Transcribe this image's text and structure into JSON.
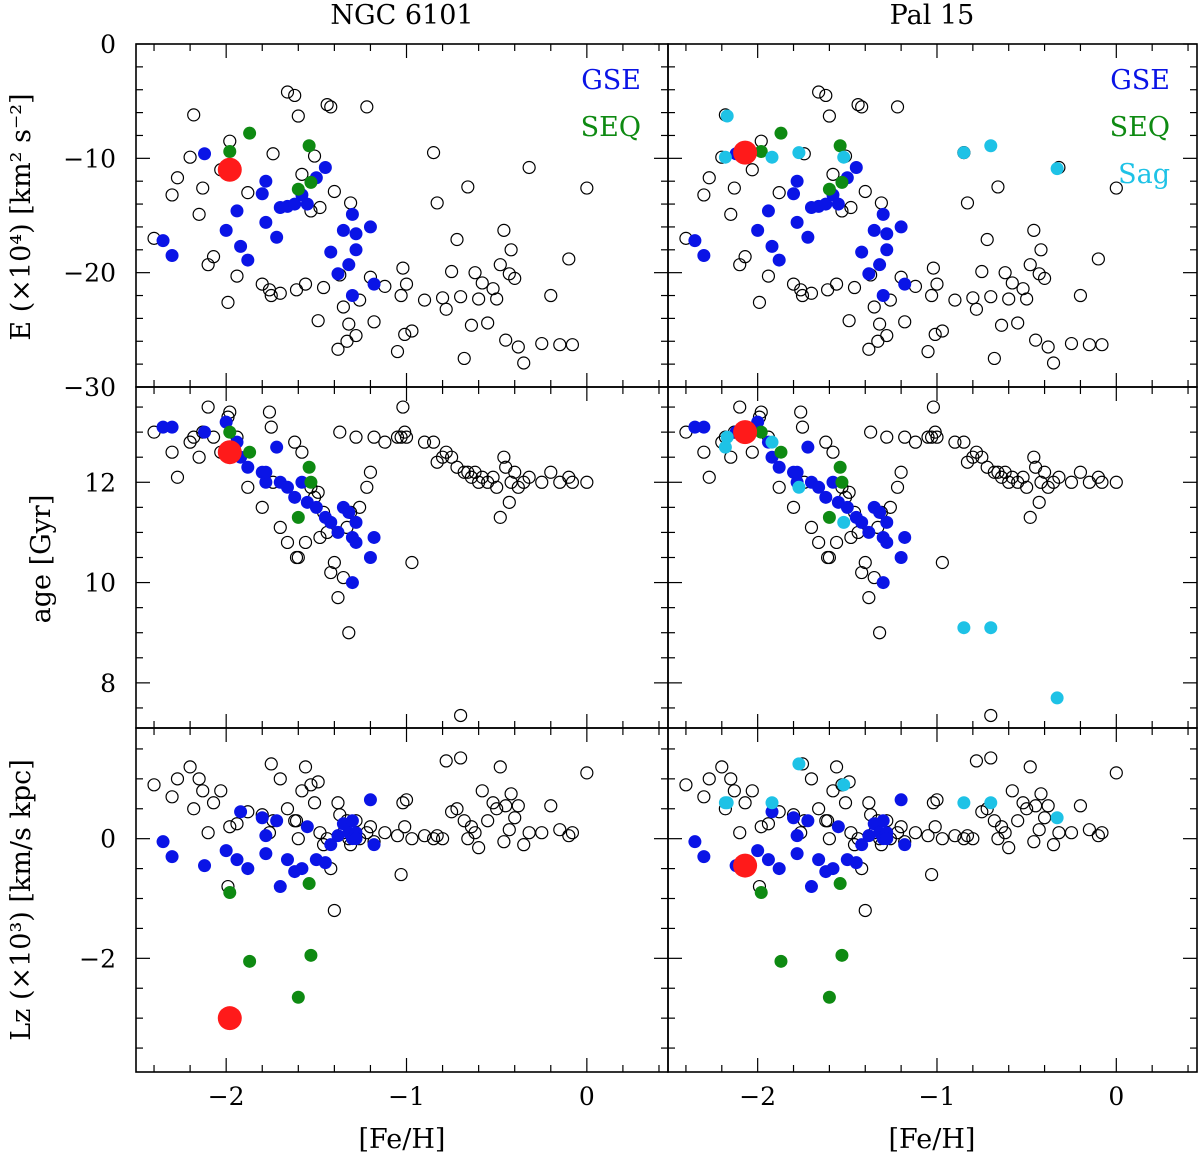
{
  "colors": {
    "open": "#000000",
    "gse": "#0a14e6",
    "seq": "#0e8a12",
    "sag": "#1ec2e6",
    "target": "#ff1a1a"
  },
  "chart_data": {
    "type": "scatter",
    "titles": [
      "NGC 6101",
      "Pal 15"
    ],
    "xlabel": "[Fe/H]",
    "xlim": [
      -2.5,
      0.45
    ],
    "xticks": [
      -2,
      -1,
      0
    ],
    "xtick_labels": [
      "−2",
      "−1",
      "0"
    ],
    "rows": [
      {
        "key": "E",
        "ylabel": "E (×10⁴) [km² s⁻²]",
        "ylim": [
          -30,
          0
        ],
        "yticks": [
          0,
          -10,
          -20,
          -30
        ],
        "ytick_labels": [
          "0",
          "−10",
          "−20",
          "−30"
        ]
      },
      {
        "key": "age",
        "ylabel": "age [Gyr]",
        "ylim": [
          7.1,
          13.9
        ],
        "yticks": [
          8,
          10,
          12
        ],
        "ytick_labels": [
          "8",
          "10",
          "12"
        ]
      },
      {
        "key": "lz",
        "ylabel": "Lz (×10³) [km/s kpc]",
        "ylim": [
          -3.9,
          1.85
        ],
        "yticks": [
          0,
          -2
        ],
        "ytick_labels": [
          "0",
          "−2"
        ]
      }
    ],
    "legends": [
      [
        "GSE",
        "SEQ"
      ],
      [
        "GSE",
        "SEQ",
        "Sag"
      ]
    ],
    "targets": [
      {
        "name": "NGC 6101",
        "feh": -1.98,
        "E": -11.0,
        "age": 12.6,
        "lz": -3.0
      },
      {
        "name": "Pal 15",
        "feh": -2.07,
        "E": -9.5,
        "age": 13.0,
        "lz": -0.45
      }
    ],
    "gse": [
      {
        "feh": -2.35,
        "E": -17.2,
        "age": 13.1,
        "lz": -0.05
      },
      {
        "feh": -2.3,
        "E": -18.5,
        "age": 13.1,
        "lz": -0.3
      },
      {
        "feh": -2.12,
        "E": -9.6,
        "age": 13.0,
        "lz": -0.45
      },
      {
        "feh": -2.0,
        "E": -16.3,
        "age": 13.2,
        "lz": -0.2
      },
      {
        "feh": -1.94,
        "E": -14.6,
        "age": 12.8,
        "lz": -0.35
      },
      {
        "feh": -1.92,
        "E": -17.7,
        "age": 12.5,
        "lz": 0.45
      },
      {
        "feh": -1.88,
        "E": -18.9,
        "age": 12.3,
        "lz": -0.5
      },
      {
        "feh": -1.8,
        "E": -13.1,
        "age": 12.2,
        "lz": 0.35
      },
      {
        "feh": -1.78,
        "E": -12.0,
        "age": 12.0,
        "lz": 0.05
      },
      {
        "feh": -1.78,
        "E": -15.6,
        "age": 12.2,
        "lz": -0.25
      },
      {
        "feh": -1.72,
        "E": -16.9,
        "age": 12.7,
        "lz": 0.3
      },
      {
        "feh": -1.7,
        "E": -14.3,
        "age": 12.0,
        "lz": -0.8
      },
      {
        "feh": -1.66,
        "E": -14.2,
        "age": 11.9,
        "lz": -0.35
      },
      {
        "feh": -1.62,
        "E": -14.0,
        "age": 11.7,
        "lz": -0.55
      },
      {
        "feh": -1.58,
        "E": -13.2,
        "age": 12.0,
        "lz": -0.5
      },
      {
        "feh": -1.55,
        "E": -14.0,
        "age": 11.6,
        "lz": 0.2
      },
      {
        "feh": -1.5,
        "E": -11.7,
        "age": 11.5,
        "lz": -0.35
      },
      {
        "feh": -1.45,
        "E": -10.8,
        "age": 11.3,
        "lz": -0.4
      },
      {
        "feh": -1.42,
        "E": -18.2,
        "age": 11.2,
        "lz": -0.1
      },
      {
        "feh": -1.38,
        "E": -20.1,
        "age": 11.0,
        "lz": 0.05
      },
      {
        "feh": -1.35,
        "E": -16.3,
        "age": 11.5,
        "lz": 0.25
      },
      {
        "feh": -1.32,
        "E": -19.3,
        "age": 11.4,
        "lz": 0.1
      },
      {
        "feh": -1.3,
        "E": -14.9,
        "age": 10.9,
        "lz": 0.0
      },
      {
        "feh": -1.28,
        "E": -16.6,
        "age": 11.2,
        "lz": 0.1
      },
      {
        "feh": -1.3,
        "E": -22.0,
        "age": 10.0,
        "lz": 0.3
      },
      {
        "feh": -1.28,
        "E": -18.0,
        "age": 10.8,
        "lz": 0.0
      },
      {
        "feh": -1.2,
        "E": -16.0,
        "age": 10.5,
        "lz": 0.65
      },
      {
        "feh": -1.18,
        "E": -21.0,
        "age": 10.9,
        "lz": -0.1
      }
    ],
    "seq": [
      {
        "feh": -1.98,
        "E": -9.4,
        "age": 13.0,
        "lz": -0.9
      },
      {
        "feh": -1.87,
        "E": -7.8,
        "age": 12.6,
        "lz": -2.05
      },
      {
        "feh": -1.6,
        "E": -12.7,
        "age": 11.3,
        "lz": -2.65
      },
      {
        "feh": -1.54,
        "E": -8.9,
        "age": 12.3,
        "lz": -0.75
      },
      {
        "feh": -1.53,
        "E": -12.1,
        "age": 12.0,
        "lz": -1.95
      }
    ],
    "sag": [
      {
        "feh": -2.17,
        "E": -6.3,
        "age": 12.9,
        "lz": 0.6
      },
      {
        "feh": -2.18,
        "E": -9.9,
        "age": 12.7,
        "lz": 0.6
      },
      {
        "feh": -1.92,
        "E": -9.9,
        "age": 12.8,
        "lz": 0.6
      },
      {
        "feh": -1.77,
        "E": -9.5,
        "age": 11.9,
        "lz": 1.25
      },
      {
        "feh": -1.52,
        "E": -9.9,
        "age": 11.2,
        "lz": 0.9
      },
      {
        "feh": -0.85,
        "E": -9.5,
        "age": 9.1,
        "lz": 0.6
      },
      {
        "feh": -0.7,
        "E": -8.9,
        "age": 9.1,
        "lz": 0.6
      },
      {
        "feh": -0.33,
        "E": -10.9,
        "age": 7.7,
        "lz": 0.35
      }
    ],
    "open": [
      {
        "feh": -2.4,
        "E": -17.0,
        "age": 13.0,
        "lz": 0.9
      },
      {
        "feh": -2.3,
        "E": -13.2,
        "age": 12.6,
        "lz": 0.7
      },
      {
        "feh": -2.27,
        "E": -11.7,
        "age": 12.1,
        "lz": 1.0
      },
      {
        "feh": -2.2,
        "E": -9.9,
        "age": 12.8,
        "lz": 1.2
      },
      {
        "feh": -2.18,
        "E": -6.2,
        "age": 12.9,
        "lz": 0.5
      },
      {
        "feh": -2.15,
        "E": -14.9,
        "age": 12.5,
        "lz": 1.0
      },
      {
        "feh": -2.13,
        "E": -12.6,
        "age": 13.0,
        "lz": 0.8
      },
      {
        "feh": -2.1,
        "E": -19.3,
        "age": 13.5,
        "lz": 0.1
      },
      {
        "feh": -2.07,
        "E": -18.6,
        "age": 12.9,
        "lz": 0.6
      },
      {
        "feh": -2.03,
        "E": -11.0,
        "age": 12.6,
        "lz": 0.8
      },
      {
        "feh": -1.99,
        "E": -22.6,
        "age": 13.3,
        "lz": -0.8
      },
      {
        "feh": -1.98,
        "E": -8.5,
        "age": 13.4,
        "lz": 0.2
      },
      {
        "feh": -1.94,
        "E": -20.3,
        "age": 12.9,
        "lz": 0.25
      },
      {
        "feh": -1.88,
        "E": -13.0,
        "age": 11.9,
        "lz": 0.45
      },
      {
        "feh": -1.8,
        "E": -21.0,
        "age": 11.5,
        "lz": 0.4
      },
      {
        "feh": -1.76,
        "E": -21.5,
        "age": 13.4,
        "lz": 0.1
      },
      {
        "feh": -1.75,
        "E": -22.0,
        "age": 13.1,
        "lz": 1.25
      },
      {
        "feh": -1.74,
        "E": -9.6,
        "age": 12.0,
        "lz": 0.3
      },
      {
        "feh": -1.7,
        "E": -21.8,
        "age": 11.1,
        "lz": 1.0
      },
      {
        "feh": -1.66,
        "E": -4.2,
        "age": 10.8,
        "lz": 0.5
      },
      {
        "feh": -1.62,
        "E": -4.5,
        "age": 12.8,
        "lz": 0.3
      },
      {
        "feh": -1.61,
        "E": -21.5,
        "age": 10.5,
        "lz": 0.3
      },
      {
        "feh": -1.6,
        "E": -6.3,
        "age": 10.5,
        "lz": 0.0
      },
      {
        "feh": -1.58,
        "E": -11.4,
        "age": 12.6,
        "lz": 0.8
      },
      {
        "feh": -1.56,
        "E": -21.0,
        "age": 10.8,
        "lz": 1.2
      },
      {
        "feh": -1.53,
        "E": -14.6,
        "age": 11.9,
        "lz": 0.9
      },
      {
        "feh": -1.51,
        "E": -9.8,
        "age": 11.7,
        "lz": 0.6
      },
      {
        "feh": -1.49,
        "E": -24.2,
        "age": 11.8,
        "lz": 0.95
      },
      {
        "feh": -1.48,
        "E": -14.3,
        "age": 10.9,
        "lz": 0.1
      },
      {
        "feh": -1.46,
        "E": -21.3,
        "age": 11.4,
        "lz": -0.1
      },
      {
        "feh": -1.44,
        "E": -5.3,
        "age": 11.0,
        "lz": 0.0
      },
      {
        "feh": -1.42,
        "E": -5.5,
        "age": 10.2,
        "lz": -0.5
      },
      {
        "feh": -1.4,
        "E": -12.9,
        "age": 10.4,
        "lz": -1.2
      },
      {
        "feh": -1.38,
        "E": -26.7,
        "age": 9.7,
        "lz": 0.6
      },
      {
        "feh": -1.37,
        "E": -20.2,
        "age": 13.0,
        "lz": 0.4
      },
      {
        "feh": -1.35,
        "E": -23.0,
        "age": 10.1,
        "lz": 0.1
      },
      {
        "feh": -1.33,
        "E": -26.0,
        "age": 11.1,
        "lz": 0.3
      },
      {
        "feh": -1.32,
        "E": -24.5,
        "age": 9.0,
        "lz": 0.0
      },
      {
        "feh": -1.31,
        "E": -13.9,
        "age": 11.4,
        "lz": -0.1
      },
      {
        "feh": -1.28,
        "E": -25.5,
        "age": 12.9,
        "lz": 0.3
      },
      {
        "feh": -1.26,
        "E": -22.4,
        "age": 11.5,
        "lz": 0.0
      },
      {
        "feh": -1.22,
        "E": -5.5,
        "age": 11.9,
        "lz": 0.1
      },
      {
        "feh": -1.2,
        "E": -20.4,
        "age": 12.2,
        "lz": 0.2
      },
      {
        "feh": -1.18,
        "E": -24.3,
        "age": 12.9,
        "lz": -0.05
      },
      {
        "feh": -1.12,
        "E": -21.2,
        "age": 12.8,
        "lz": 0.1
      },
      {
        "feh": -1.05,
        "E": -26.9,
        "age": 12.9,
        "lz": 0.05
      },
      {
        "feh": -1.03,
        "E": -22.0,
        "age": 12.9,
        "lz": -0.6
      },
      {
        "feh": -1.02,
        "E": -19.6,
        "age": 13.5,
        "lz": 0.6
      },
      {
        "feh": -1.01,
        "E": -25.4,
        "age": 13.0,
        "lz": 0.2
      },
      {
        "feh": -1.0,
        "E": -21.0,
        "age": 12.9,
        "lz": 0.65
      },
      {
        "feh": -0.97,
        "E": -25.1,
        "age": 10.4,
        "lz": 0.0
      },
      {
        "feh": -0.9,
        "E": -22.4,
        "age": 12.8,
        "lz": 0.05
      },
      {
        "feh": -0.85,
        "E": -9.5,
        "age": 12.8,
        "lz": 0.0
      },
      {
        "feh": -0.83,
        "E": -13.9,
        "age": 12.4,
        "lz": 0.05
      },
      {
        "feh": -0.8,
        "E": -22.2,
        "age": 12.5,
        "lz": 0.0
      },
      {
        "feh": -0.78,
        "E": -23.2,
        "age": 12.6,
        "lz": 1.3
      },
      {
        "feh": -0.75,
        "E": -19.9,
        "age": 12.5,
        "lz": 0.45
      },
      {
        "feh": -0.72,
        "E": -17.1,
        "age": 12.3,
        "lz": 0.5
      },
      {
        "feh": -0.7,
        "E": -22.1,
        "age": 7.35,
        "lz": 1.35
      },
      {
        "feh": -0.68,
        "E": -27.5,
        "age": 12.2,
        "lz": 0.3
      },
      {
        "feh": -0.66,
        "E": -12.5,
        "age": 12.2,
        "lz": 0.0
      },
      {
        "feh": -0.64,
        "E": -24.6,
        "age": 12.1,
        "lz": 0.2
      },
      {
        "feh": -0.62,
        "E": -20.0,
        "age": 12.2,
        "lz": 0.1
      },
      {
        "feh": -0.6,
        "E": -22.3,
        "age": 12.0,
        "lz": -0.15
      },
      {
        "feh": -0.58,
        "E": -20.9,
        "age": 12.1,
        "lz": 0.8
      },
      {
        "feh": -0.55,
        "E": -24.4,
        "age": 12.0,
        "lz": 0.3
      },
      {
        "feh": -0.52,
        "E": -21.4,
        "age": 12.1,
        "lz": 0.6
      },
      {
        "feh": -0.5,
        "E": -22.3,
        "age": 11.9,
        "lz": 0.5
      },
      {
        "feh": -0.48,
        "E": -19.3,
        "age": 11.3,
        "lz": 1.2
      },
      {
        "feh": -0.46,
        "E": -16.3,
        "age": 12.5,
        "lz": -0.05
      },
      {
        "feh": -0.45,
        "E": -25.9,
        "age": 12.3,
        "lz": 0.55
      },
      {
        "feh": -0.43,
        "E": -20.1,
        "age": 11.6,
        "lz": 0.15
      },
      {
        "feh": -0.42,
        "E": -18.0,
        "age": 12.0,
        "lz": 0.75
      },
      {
        "feh": -0.4,
        "E": -20.5,
        "age": 12.2,
        "lz": 0.35
      },
      {
        "feh": -0.38,
        "E": -26.5,
        "age": 11.9,
        "lz": 0.55
      },
      {
        "feh": -0.35,
        "E": -27.9,
        "age": 12.0,
        "lz": -0.1
      },
      {
        "feh": -0.32,
        "E": -10.8,
        "age": 12.1,
        "lz": 0.1
      },
      {
        "feh": -0.25,
        "E": -26.2,
        "age": 12.0,
        "lz": 0.1
      },
      {
        "feh": -0.2,
        "E": -22.0,
        "age": 12.2,
        "lz": 0.55
      },
      {
        "feh": -0.15,
        "E": -26.3,
        "age": 12.0,
        "lz": 0.15
      },
      {
        "feh": -0.1,
        "E": -18.8,
        "age": 12.1,
        "lz": 0.05
      },
      {
        "feh": -0.08,
        "E": -26.3,
        "age": 12.0,
        "lz": 0.1
      },
      {
        "feh": 0.0,
        "E": -12.6,
        "age": 12.0,
        "lz": 1.1
      }
    ]
  }
}
